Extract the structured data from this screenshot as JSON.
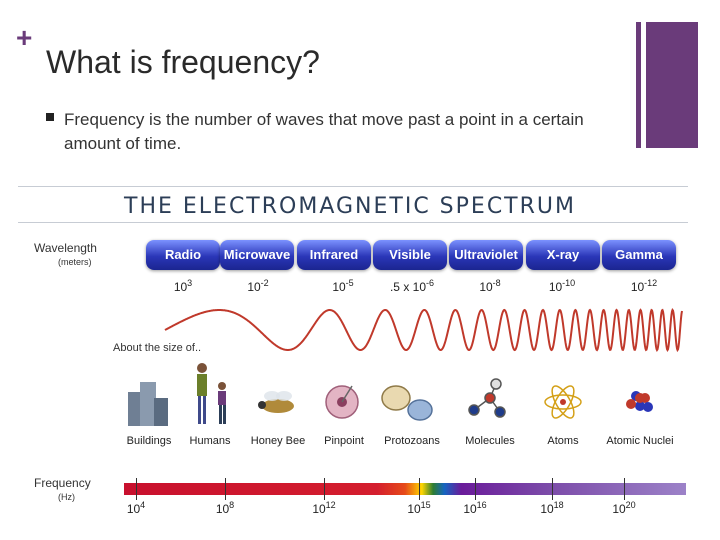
{
  "slide": {
    "title": "What is frequency?",
    "bullet": "Frequency is the number of waves that move past a point in a certain amount of time.",
    "accent_color": "#6a3b7a"
  },
  "figure": {
    "title": "THE ELECTROMAGNETIC SPECTRUM",
    "wavelength_label": "Wavelength",
    "wavelength_unit": "(meters)",
    "size_label": "About the size of..",
    "frequency_label": "Frequency",
    "frequency_unit": "(Hz)",
    "bands": [
      "Radio",
      "Microwave",
      "Infrared",
      "Visible",
      "Ultraviolet",
      "X-ray",
      "Gamma Ray"
    ],
    "wavelengths": [
      {
        "base": "10",
        "exp": "3"
      },
      {
        "base": "10",
        "exp": "-2"
      },
      {
        "base": "10",
        "exp": "-5"
      },
      {
        "base": ".5 x 10",
        "exp": "-6"
      },
      {
        "base": "10",
        "exp": "-8"
      },
      {
        "base": "10",
        "exp": "-10"
      },
      {
        "base": "10",
        "exp": "-12"
      }
    ],
    "objects": [
      "Buildings",
      "Humans",
      "Honey Bee",
      "Pinpoint",
      "Protozoans",
      "Molecules",
      "Atoms",
      "Atomic Nuclei"
    ],
    "frequencies": [
      {
        "base": "10",
        "exp": "4"
      },
      {
        "base": "10",
        "exp": "8"
      },
      {
        "base": "10",
        "exp": "12"
      },
      {
        "base": "10",
        "exp": "15"
      },
      {
        "base": "10",
        "exp": "16"
      },
      {
        "base": "10",
        "exp": "18"
      },
      {
        "base": "10",
        "exp": "20"
      }
    ]
  }
}
